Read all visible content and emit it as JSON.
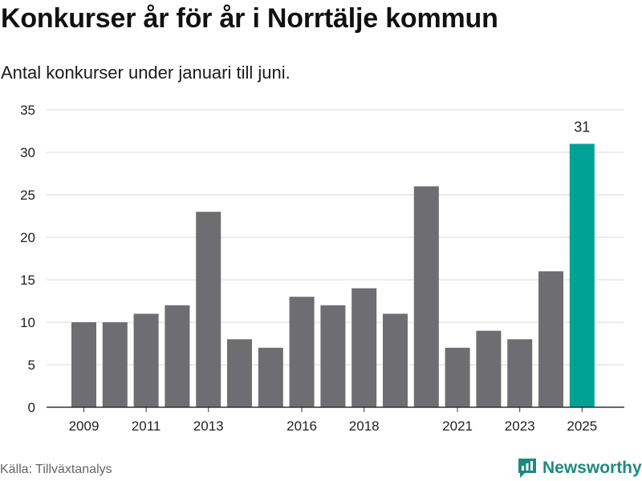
{
  "header": {
    "title": "Konkurser år för år i Norrtälje kommun",
    "subtitle": "Antal konkurser under januari till juni."
  },
  "footer": {
    "source": "Källa: Tillväxtanalys",
    "brand": "Newsworthy",
    "brand_icon": "newsworthy-logo-icon"
  },
  "colors": {
    "bar": "#6e6d72",
    "highlight": "#00a295",
    "grid": "#d9d9d9",
    "axis": "#333333",
    "brand": "#1e8a7f"
  },
  "chart_data": {
    "type": "bar",
    "categories": [
      "2009",
      "2010",
      "2011",
      "2012",
      "2013",
      "2014",
      "2015",
      "2016",
      "2017",
      "2018",
      "2019",
      "2020",
      "2021",
      "2022",
      "2023",
      "2024",
      "2025"
    ],
    "values": [
      10,
      10,
      11,
      12,
      23,
      8,
      7,
      13,
      12,
      14,
      11,
      26,
      7,
      9,
      8,
      16,
      31
    ],
    "x_tick_labels": [
      "2009",
      "2011",
      "2013",
      "2016",
      "2018",
      "2021",
      "2023",
      "2025"
    ],
    "y_ticks": [
      0,
      5,
      10,
      15,
      20,
      25,
      30,
      35
    ],
    "ylim": [
      0,
      35
    ],
    "highlight_category": "2025",
    "data_labels": [
      {
        "category": "2025",
        "text": "31"
      }
    ],
    "grid": true,
    "xlabel": "",
    "ylabel": ""
  }
}
